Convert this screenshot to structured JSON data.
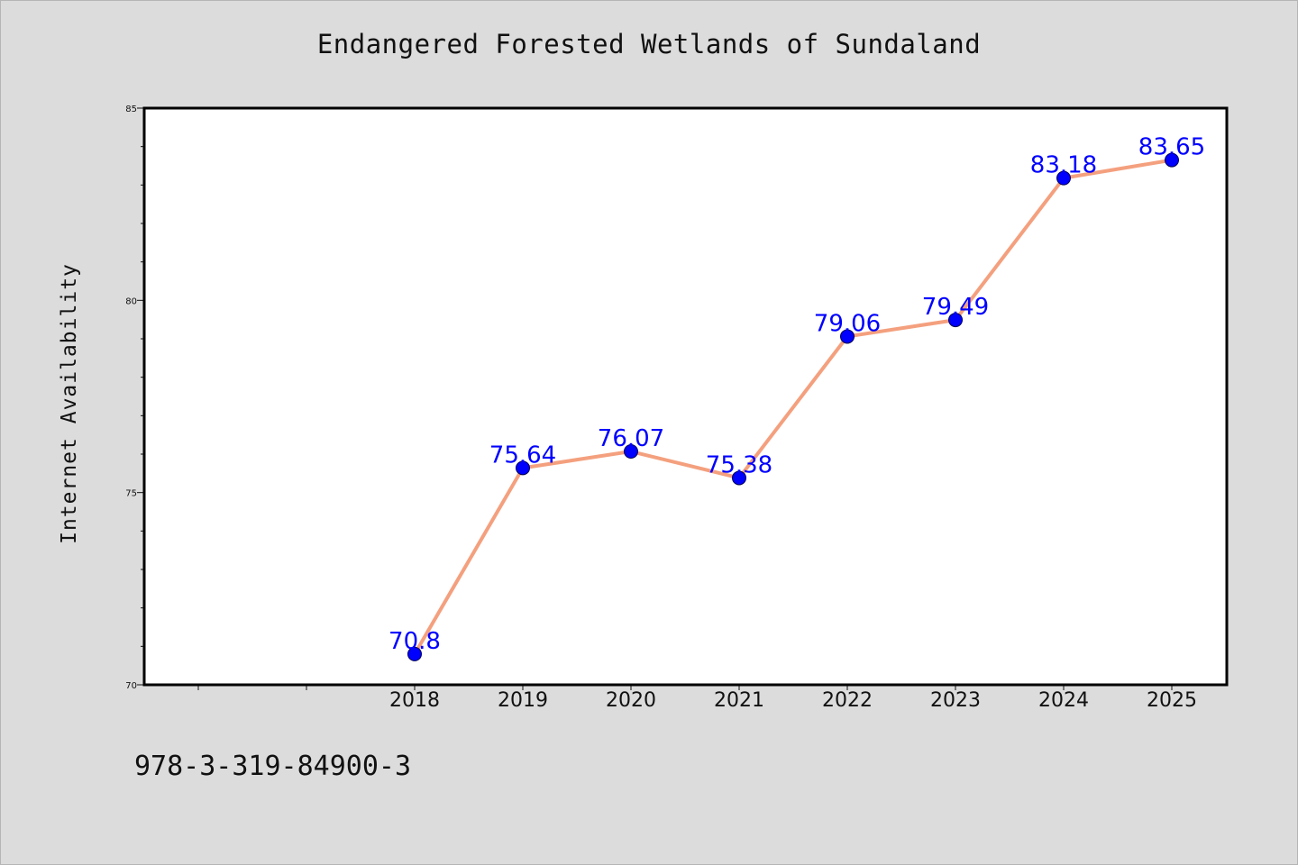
{
  "chart_data": {
    "type": "line",
    "title": "Endangered Forested Wetlands of Sundaland",
    "xlabel": "",
    "ylabel": "Internet Availability",
    "x": [
      "2018",
      "2019",
      "2020",
      "2021",
      "2022",
      "2023",
      "2024",
      "2025"
    ],
    "series": [
      {
        "values": [
          70.8,
          75.64,
          76.07,
          75.38,
          79.06,
          79.49,
          83.18,
          83.65
        ],
        "labels": [
          "70.8",
          "75.64",
          "76.07",
          "75.38",
          "79.06",
          "79.49",
          "83.18",
          "83.65"
        ]
      }
    ],
    "ylim": [
      70,
      85
    ],
    "yticks": [
      "70",
      "75",
      "80",
      "85"
    ],
    "grid": false,
    "legend": "none",
    "colors": {
      "line": "#f4a07e",
      "marker": "#0000ff",
      "marker_edge": "#000055",
      "data_label": "#0000ff",
      "background": "#dcdcdc",
      "plot_area": "#ffffff"
    },
    "caption": "978-3-319-84900-3"
  }
}
